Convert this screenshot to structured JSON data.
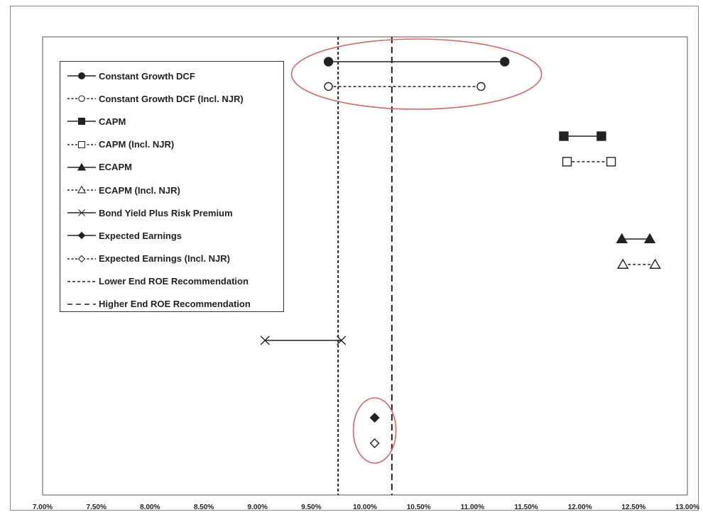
{
  "chart_data": {
    "type": "scatter",
    "title": "",
    "xlabel": "",
    "ylabel": "",
    "xlim": [
      7.0,
      13.0
    ],
    "x_ticks": [
      "7.00%",
      "7.50%",
      "8.00%",
      "8.50%",
      "9.00%",
      "9.50%",
      "10.00%",
      "10.50%",
      "11.00%",
      "11.50%",
      "12.00%",
      "12.50%",
      "13.00%"
    ],
    "x_tick_values": [
      7.0,
      7.5,
      8.0,
      8.5,
      9.0,
      9.5,
      10.0,
      10.5,
      11.0,
      11.5,
      12.0,
      12.5,
      13.0
    ],
    "legend_position": "upper-left",
    "series": [
      {
        "name": "Constant Growth DCF",
        "marker": "circle",
        "filled": true,
        "line": "solid",
        "row": 1,
        "low": 9.66,
        "high": 11.3
      },
      {
        "name": "Constant Growth DCF (Incl. NJR)",
        "marker": "circle",
        "filled": false,
        "line": "dashed",
        "row": 2,
        "low": 9.66,
        "high": 11.08
      },
      {
        "name": "CAPM",
        "marker": "square",
        "filled": true,
        "line": "solid",
        "row": 3,
        "low": 11.85,
        "high": 12.2
      },
      {
        "name": "CAPM (Incl. NJR)",
        "marker": "square",
        "filled": false,
        "line": "dashed",
        "row": 4,
        "low": 11.88,
        "high": 12.29
      },
      {
        "name": "ECAPM",
        "marker": "triangle",
        "filled": true,
        "line": "solid",
        "row": 5,
        "low": 12.39,
        "high": 12.65
      },
      {
        "name": "ECAPM (Incl. NJR)",
        "marker": "triangle",
        "filled": false,
        "line": "dashed",
        "row": 6,
        "low": 12.4,
        "high": 12.7
      },
      {
        "name": "Bond Yield Plus Risk Premium",
        "marker": "x",
        "filled": true,
        "line": "solid",
        "row": 7,
        "low": 9.07,
        "high": 9.78
      },
      {
        "name": "Expected Earnings",
        "marker": "diamond",
        "filled": true,
        "line": "solid",
        "row": 8,
        "low": 10.09,
        "high": 10.09
      },
      {
        "name": "Expected Earnings (Incl. NJR)",
        "marker": "diamond",
        "filled": false,
        "line": "dashed",
        "row": 9,
        "low": 10.09,
        "high": 10.09
      }
    ],
    "reference_lines": [
      {
        "name": "Lower End ROE Recommendation",
        "value": 9.75,
        "style": "short-dash"
      },
      {
        "name": "Higher End ROE Recommendation",
        "value": 10.25,
        "style": "long-dash"
      }
    ],
    "highlight_circles": [
      {
        "around": [
          "Constant Growth DCF",
          "Constant Growth DCF (Incl. NJR)"
        ],
        "color": "#d9636b"
      },
      {
        "around": [
          "Expected Earnings",
          "Expected Earnings (Incl. NJR)"
        ],
        "color": "#d9636b"
      }
    ]
  },
  "legend": {
    "items": [
      {
        "label": "Constant Growth DCF",
        "marker": "circle",
        "filled": true,
        "line": "solid"
      },
      {
        "label": "Constant Growth DCF (Incl. NJR)",
        "marker": "circle",
        "filled": false,
        "line": "dashed"
      },
      {
        "label": "CAPM",
        "marker": "square",
        "filled": true,
        "line": "solid"
      },
      {
        "label": "CAPM (Incl. NJR)",
        "marker": "square",
        "filled": false,
        "line": "dashed"
      },
      {
        "label": "ECAPM",
        "marker": "triangle",
        "filled": true,
        "line": "solid"
      },
      {
        "label": "ECAPM (Incl. NJR)",
        "marker": "triangle",
        "filled": false,
        "line": "dashed"
      },
      {
        "label": "Bond Yield Plus Risk Premium",
        "marker": "x",
        "filled": true,
        "line": "solid"
      },
      {
        "label": "Expected Earnings",
        "marker": "diamond",
        "filled": true,
        "line": "solid"
      },
      {
        "label": "Expected Earnings (Incl. NJR)",
        "marker": "diamond",
        "filled": false,
        "line": "dashed"
      },
      {
        "label": "Lower End ROE Recommendation",
        "marker": "none",
        "filled": false,
        "line": "short-dash"
      },
      {
        "label": "Higher End ROE Recommendation",
        "marker": "none",
        "filled": false,
        "line": "long-dash"
      }
    ]
  },
  "colors": {
    "series": "#222222",
    "highlight": "#d9636b",
    "frame": "#8a8a8a"
  }
}
